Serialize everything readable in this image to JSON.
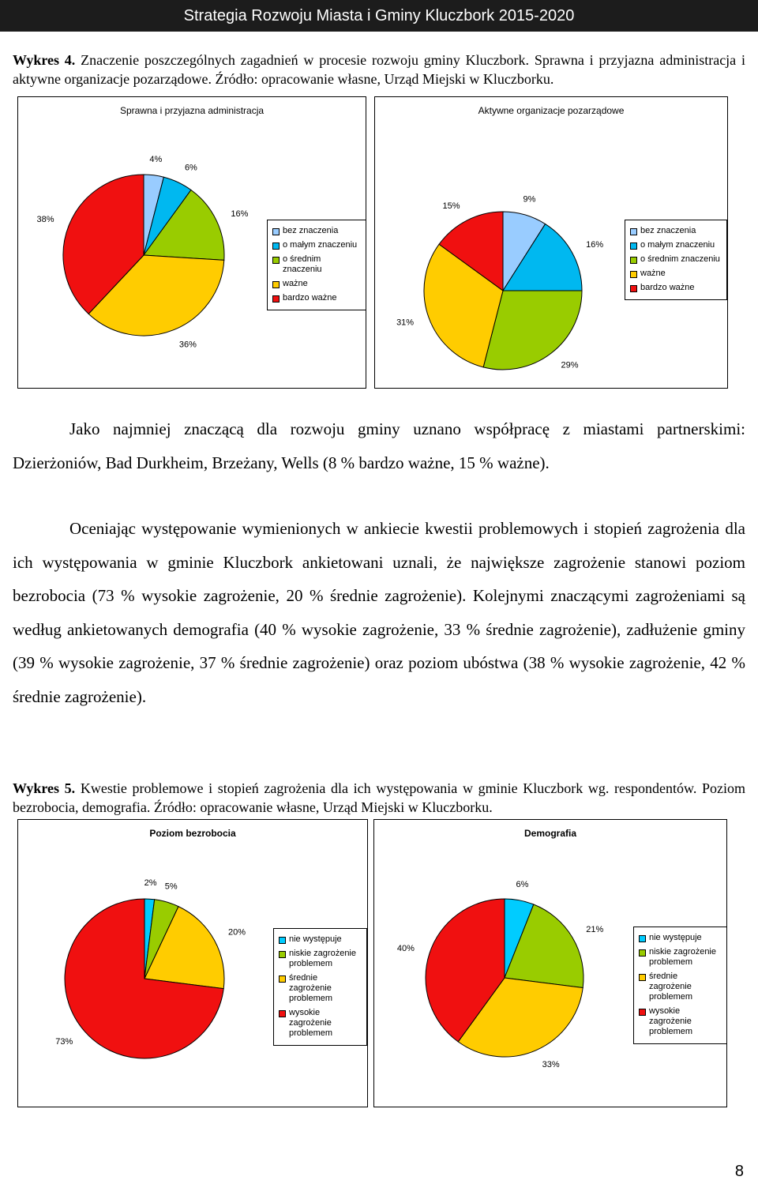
{
  "header": "Strategia Rozwoju Miasta i Gminy Kluczbork 2015-2020",
  "figure4": {
    "label": "Wykres 4.",
    "text": "Znaczenie poszczególnych zagadnień w procesie rozwoju gminy Kluczbork. Sprawna i przyjazna administracja i aktywne organizacje pozarządowe. Źródło: opracowanie własne, Urząd Miejski w Kluczborku."
  },
  "chart_data": [
    {
      "type": "pie",
      "title": "Sprawna i przyjazna administracja",
      "categories": [
        "bez znaczenia",
        "o małym znaczeniu",
        "o średnim znaczeniu",
        "ważne",
        "bardzo ważne"
      ],
      "values": [
        4,
        6,
        16,
        36,
        38
      ],
      "value_labels": [
        "4%",
        "6%",
        "16%",
        "36%",
        "38%"
      ],
      "colors": [
        "#99ccff",
        "#00b8f0",
        "#99cc00",
        "#ffcc00",
        "#f01010"
      ]
    },
    {
      "type": "pie",
      "title": "Aktywne organizacje pozarządowe",
      "categories": [
        "bez znaczenia",
        "o małym znaczeniu",
        "o średnim znaczeniu",
        "ważne",
        "bardzo ważne"
      ],
      "values": [
        9,
        16,
        29,
        31,
        15
      ],
      "value_labels": [
        "9%",
        "16%",
        "29%",
        "31%",
        "15%"
      ],
      "colors": [
        "#99ccff",
        "#00b8f0",
        "#99cc00",
        "#ffcc00",
        "#f01010"
      ]
    },
    {
      "type": "pie",
      "title": "Poziom bezrobocia",
      "categories": [
        "nie występuje",
        "niskie zagrożenie problemem",
        "średnie zagrożenie problemem",
        "wysokie zagrożenie problemem"
      ],
      "values": [
        2,
        5,
        20,
        73
      ],
      "value_labels": [
        "2%",
        "5%",
        "20%",
        "73%"
      ],
      "colors": [
        "#00ccff",
        "#99cc00",
        "#ffcc00",
        "#f01010"
      ]
    },
    {
      "type": "pie",
      "title": "Demografia",
      "categories": [
        "nie występuje",
        "niskie zagrożenie problemem",
        "średnie zagrożenie problemem",
        "wysokie zagrożenie problemem"
      ],
      "values": [
        6,
        21,
        33,
        40
      ],
      "value_labels": [
        "6%",
        "21%",
        "33%",
        "40%"
      ],
      "colors": [
        "#00ccff",
        "#99cc00",
        "#ffcc00",
        "#f01010"
      ]
    }
  ],
  "paragraphs": [
    "Jako najmniej znaczącą dla rozwoju gminy uznano współpracę z miastami partnerskimi: Dzierżoniów, Bad Durkheim, Brzeżany, Wells (8 % bardzo ważne, 15 % ważne).",
    "Oceniając występowanie wymienionych w ankiecie kwestii problemowych i stopień zagrożenia dla ich występowania w gminie Kluczbork ankietowani uznali, że największe zagrożenie stanowi poziom bezrobocia (73 % wysokie zagrożenie, 20 % średnie zagrożenie). Kolejnymi znaczącymi zagrożeniami są według ankietowanych demografia (40 % wysokie zagrożenie, 33 % średnie zagrożenie), zadłużenie gminy (39 % wysokie zagrożenie, 37 % średnie zagrożenie) oraz poziom ubóstwa (38 % wysokie zagrożenie, 42 % średnie zagrożenie)."
  ],
  "figure5": {
    "label": "Wykres 5.",
    "text": "Kwestie problemowe i stopień zagrożenia dla ich występowania w gminie Kluczbork wg. respondentów. Poziom bezrobocia, demografia. Źródło: opracowanie własne, Urząd Miejski w Kluczborku."
  },
  "page_number": "8"
}
